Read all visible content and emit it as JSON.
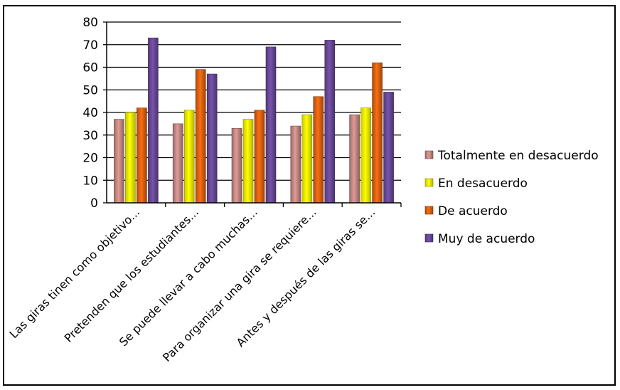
{
  "chart_data": {
    "type": "bar",
    "title": "",
    "xlabel": "",
    "ylabel": "",
    "ylim": [
      0,
      80
    ],
    "yticks": [
      0,
      10,
      20,
      30,
      40,
      50,
      60,
      70,
      80
    ],
    "grid": true,
    "legend_position": "right",
    "categories": [
      "Las giras tinen como objetivo...",
      "Pretenden que los estudiantes...",
      "Se puede llevar a cabo muchas...",
      "Para organizar una gira se requiere...",
      "Antes y después de las giras se..."
    ],
    "series": [
      {
        "name": "Totalmente en desacuerdo",
        "color": "#c98a86",
        "values": [
          37,
          35,
          33,
          34,
          39
        ]
      },
      {
        "name": "En desacuerdo",
        "color": "#ffff00",
        "values": [
          40,
          41,
          37,
          39,
          42
        ]
      },
      {
        "name": "De acuerdo",
        "color": "#e0620f",
        "values": [
          42,
          59,
          41,
          47,
          62
        ]
      },
      {
        "name": "Muy de acuerdo",
        "color": "#6a4a9a",
        "values": [
          73,
          57,
          69,
          72,
          49
        ]
      }
    ]
  }
}
